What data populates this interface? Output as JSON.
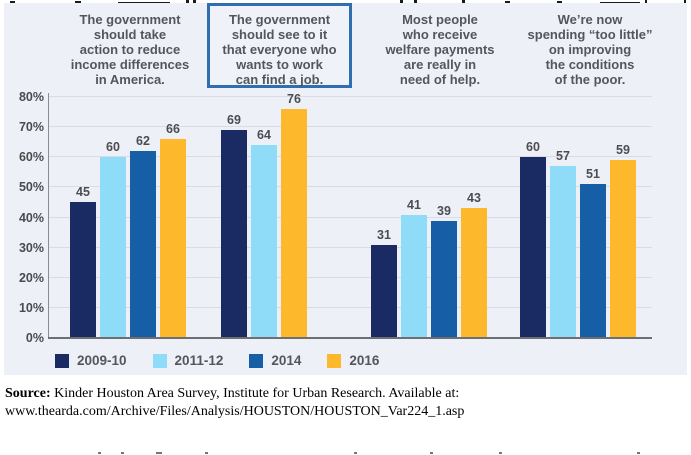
{
  "questions": [
    {
      "text": "The government\nshould take\naction to reduce\nincome differences\nin America.",
      "highlighted": false
    },
    {
      "text": "The government\nshould see to it\nthat everyone who\nwants to work\ncan find a job.",
      "highlighted": true
    },
    {
      "text": "Most people\nwho receive\nwelfare payments\nare really in\nneed of help.",
      "highlighted": false
    },
    {
      "text": "We’re now\nspending “too little”\non improving\nthe conditions\nof the poor.",
      "highlighted": false
    }
  ],
  "chart_data": {
    "type": "bar",
    "categories": [
      "The government should take action to reduce income differences in America.",
      "The government should see to it that everyone who wants to work can find a job.",
      "Most people who receive welfare payments are really in need of help.",
      "We’re now spending “too little” on improving the conditions of the poor."
    ],
    "series": [
      {
        "name": "2009-10",
        "color": "#1a2a62",
        "values": [
          45,
          69,
          31,
          60
        ]
      },
      {
        "name": "2011-12",
        "color": "#8edcf7",
        "values": [
          60,
          64,
          41,
          57
        ]
      },
      {
        "name": "2014",
        "color": "#165fa7",
        "values": [
          62,
          null,
          39,
          51
        ]
      },
      {
        "name": "2016",
        "color": "#fdb92b",
        "values": [
          66,
          76,
          43,
          59
        ]
      }
    ],
    "ylim": [
      0,
      80
    ],
    "yticks": [
      "0%",
      "10%",
      "20%",
      "30%",
      "40%",
      "50%",
      "60%",
      "70%",
      "80%"
    ],
    "grid": true,
    "value_labels": true,
    "legend_position": "bottom",
    "highlighted_category_index": 1
  },
  "legend": [
    {
      "label": "2009-10",
      "color": "#1a2a62"
    },
    {
      "label": "2011-12",
      "color": "#8edcf7"
    },
    {
      "label": "2014",
      "color": "#165fa7"
    },
    {
      "label": "2016",
      "color": "#fdb92b"
    }
  ],
  "source": {
    "label": "Source:",
    "line1": " Kinder Houston Area Survey, Institute for Urban Research. Available at:",
    "line2": "www.thearda.com/Archive/Files/Analysis/HOUSTON/HOUSTON_Var224_1.asp"
  },
  "colors": {
    "panel_bg": "#eef0f7",
    "gridline": "#d9dce5",
    "highlight_border": "#2f6fb0",
    "header_text": "#54565a",
    "value_text": "#4c4d4f",
    "axis_text": "#4a4b4d"
  }
}
